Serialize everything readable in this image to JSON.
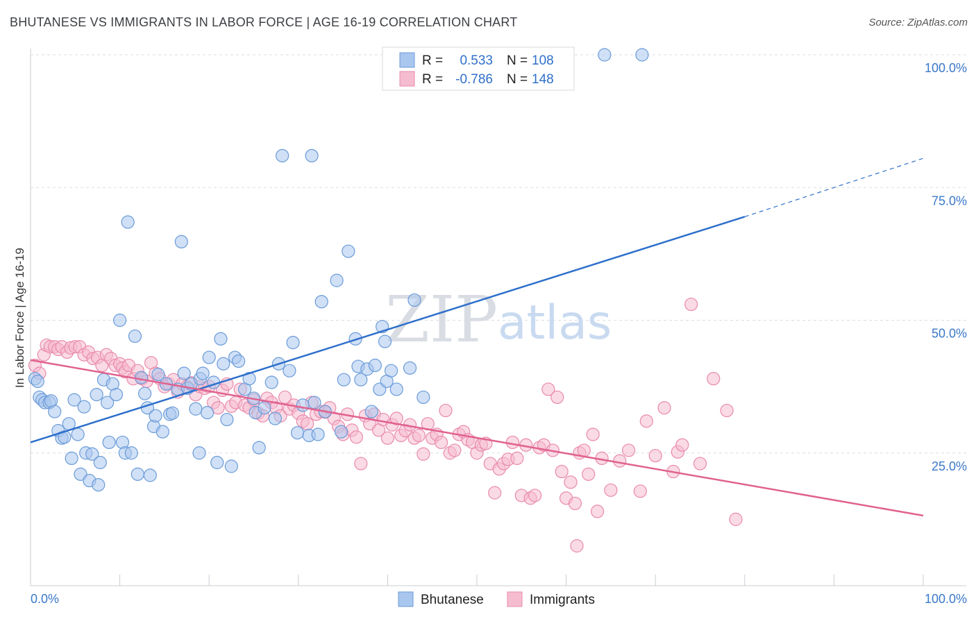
{
  "title": "BHUTANESE VS IMMIGRANTS IN LABOR FORCE | AGE 16-19 CORRELATION CHART",
  "source": "Source: ZipAtlas.com",
  "watermark": {
    "zip": "ZIP",
    "atlas": "atlas"
  },
  "colors": {
    "blue_fill": "#a9c6ee",
    "blue_stroke": "#6a9bd8",
    "blue_line": "#2e6fcb",
    "pink_fill": "#f5bcd0",
    "pink_stroke": "#e98aac",
    "pink_line": "#e0628f",
    "grid": "#d9dde3",
    "tick_text": "#3a78c9"
  },
  "legend": {
    "rows": [
      {
        "r_label": "R =",
        "r_value": "0.533",
        "n_label": "N =",
        "n_value": "108"
      },
      {
        "r_label": "R =",
        "r_value": "-0.786",
        "n_label": "N =",
        "n_value": "148"
      }
    ]
  },
  "bottom_legend": [
    "Bhutanese",
    "Immigrants"
  ],
  "chart_data": {
    "type": "scatter",
    "title": "BHUTANESE VS IMMIGRANTS IN LABOR FORCE | AGE 16-19 CORRELATION CHART",
    "xlabel": "",
    "ylabel": "In Labor Force | Age 16-19",
    "xlim": [
      0,
      100
    ],
    "ylim": [
      0,
      105
    ],
    "x_tick_labels": [
      "0.0%",
      "100.0%"
    ],
    "y_ticks": [
      25,
      50,
      75,
      100
    ],
    "y_tick_labels": [
      "25.0%",
      "50.0%",
      "75.0%",
      "100.0%"
    ],
    "grid": true,
    "legend_position": "top-center",
    "series": [
      {
        "name": "Bhutanese",
        "r": 0.533,
        "n": 108,
        "trend": {
          "x": [
            0,
            80
          ],
          "y": [
            27.0,
            69.5
          ],
          "dashed_to": [
            100,
            80.5
          ]
        },
        "points": [
          [
            0.5,
            39
          ],
          [
            0.8,
            38.5
          ],
          [
            1,
            35.5
          ],
          [
            1.3,
            35
          ],
          [
            1.6,
            34.5
          ],
          [
            2.1,
            34.5
          ],
          [
            2.3,
            34.8
          ],
          [
            2.7,
            32.8
          ],
          [
            3.1,
            29.2
          ],
          [
            3.5,
            27.8
          ],
          [
            3.8,
            28
          ],
          [
            4.3,
            30.5
          ],
          [
            4.6,
            24
          ],
          [
            4.9,
            35
          ],
          [
            5.3,
            28.5
          ],
          [
            5.6,
            21
          ],
          [
            6,
            33.7
          ],
          [
            6.2,
            25
          ],
          [
            6.6,
            19.8
          ],
          [
            6.9,
            24.8
          ],
          [
            7.4,
            36
          ],
          [
            7.6,
            19
          ],
          [
            7.8,
            23.2
          ],
          [
            8.2,
            38.8
          ],
          [
            8.6,
            34.5
          ],
          [
            8.8,
            27
          ],
          [
            9.2,
            38
          ],
          [
            9.6,
            36
          ],
          [
            10,
            50
          ],
          [
            10.3,
            27
          ],
          [
            10.6,
            25
          ],
          [
            10.9,
            68.5
          ],
          [
            11.3,
            25
          ],
          [
            11.7,
            47
          ],
          [
            12,
            21
          ],
          [
            12.4,
            39.2
          ],
          [
            12.8,
            36.2
          ],
          [
            13.1,
            33.5
          ],
          [
            13.4,
            20.8
          ],
          [
            13.8,
            30
          ],
          [
            14,
            32
          ],
          [
            14.3,
            39.8
          ],
          [
            14.8,
            29
          ],
          [
            15.2,
            38
          ],
          [
            15.6,
            32.3
          ],
          [
            15.9,
            32.5
          ],
          [
            16.5,
            37
          ],
          [
            16.9,
            64.8
          ],
          [
            17.2,
            40
          ],
          [
            17.6,
            37.2
          ],
          [
            18,
            38
          ],
          [
            18.5,
            33.3
          ],
          [
            18.9,
            25
          ],
          [
            19,
            39
          ],
          [
            19.3,
            40
          ],
          [
            19.8,
            32.6
          ],
          [
            20,
            43
          ],
          [
            20.5,
            38.3
          ],
          [
            20.9,
            23.2
          ],
          [
            21.3,
            46.5
          ],
          [
            21.6,
            41.8
          ],
          [
            22,
            31.3
          ],
          [
            22.5,
            22.5
          ],
          [
            22.9,
            43
          ],
          [
            23.3,
            42.3
          ],
          [
            24,
            37
          ],
          [
            24.5,
            39
          ],
          [
            25,
            35.3
          ],
          [
            25.2,
            32.6
          ],
          [
            25.6,
            26
          ],
          [
            26.2,
            33.5
          ],
          [
            27,
            38.3
          ],
          [
            27.4,
            31.5
          ],
          [
            27.8,
            41.8
          ],
          [
            28.2,
            81
          ],
          [
            29,
            40.5
          ],
          [
            29.4,
            45.8
          ],
          [
            29.9,
            28.8
          ],
          [
            30.5,
            34
          ],
          [
            31.2,
            28.3
          ],
          [
            31.5,
            81
          ],
          [
            31.8,
            34.5
          ],
          [
            32.2,
            28.5
          ],
          [
            32.6,
            53.5
          ],
          [
            33,
            32.8
          ],
          [
            34.3,
            57.5
          ],
          [
            34.8,
            29
          ],
          [
            35.1,
            38.8
          ],
          [
            35.6,
            63
          ],
          [
            36.4,
            46.5
          ],
          [
            36.7,
            41.3
          ],
          [
            37,
            38.8
          ],
          [
            37.7,
            40.8
          ],
          [
            38.2,
            32.8
          ],
          [
            38.6,
            41.5
          ],
          [
            39.1,
            37
          ],
          [
            39.4,
            48.8
          ],
          [
            39.7,
            46
          ],
          [
            39.9,
            38.5
          ],
          [
            40.4,
            40.5
          ],
          [
            41,
            37
          ],
          [
            42.5,
            41
          ],
          [
            43,
            53.8
          ],
          [
            44,
            35.5
          ],
          [
            64.3,
            100
          ],
          [
            68.5,
            100
          ]
        ]
      },
      {
        "name": "Immigrants",
        "r": -0.786,
        "n": 148,
        "trend": {
          "x": [
            0,
            100
          ],
          "y": [
            42.5,
            13.2
          ]
        },
        "points": [
          [
            0.5,
            41.5
          ],
          [
            1,
            40
          ],
          [
            1.5,
            43.5
          ],
          [
            1.8,
            45.3
          ],
          [
            2.2,
            45
          ],
          [
            2.7,
            45
          ],
          [
            3.1,
            44.5
          ],
          [
            3.5,
            45
          ],
          [
            4.1,
            44
          ],
          [
            4.5,
            44.8
          ],
          [
            5,
            45
          ],
          [
            5.5,
            45
          ],
          [
            6,
            43.5
          ],
          [
            6.5,
            44
          ],
          [
            7,
            42.8
          ],
          [
            7.5,
            43
          ],
          [
            8,
            41.5
          ],
          [
            8.5,
            43.5
          ],
          [
            9,
            42.8
          ],
          [
            9.5,
            41.5
          ],
          [
            10,
            41.8
          ],
          [
            10.3,
            41
          ],
          [
            10.6,
            40.3
          ],
          [
            11,
            41.5
          ],
          [
            11.5,
            39
          ],
          [
            12,
            40.5
          ],
          [
            12.5,
            39
          ],
          [
            13,
            38.5
          ],
          [
            13.5,
            42
          ],
          [
            14,
            40
          ],
          [
            14.5,
            39
          ],
          [
            15,
            37.5
          ],
          [
            15.5,
            38
          ],
          [
            16,
            38.8
          ],
          [
            16.5,
            36.5
          ],
          [
            17,
            38
          ],
          [
            17.5,
            37.5
          ],
          [
            18,
            38.2
          ],
          [
            18.5,
            36
          ],
          [
            19,
            37.5
          ],
          [
            19.5,
            37.2
          ],
          [
            20,
            37.5
          ],
          [
            20.5,
            34.5
          ],
          [
            21,
            33.5
          ],
          [
            21.5,
            36.8
          ],
          [
            22,
            38
          ],
          [
            22.5,
            33.8
          ],
          [
            23,
            34.5
          ],
          [
            23.5,
            37
          ],
          [
            24,
            34
          ],
          [
            24.5,
            33.5
          ],
          [
            25,
            35
          ],
          [
            25.5,
            32.5
          ],
          [
            26,
            32
          ],
          [
            26.5,
            35.3
          ],
          [
            27,
            34.5
          ],
          [
            27.5,
            33.5
          ],
          [
            28,
            32
          ],
          [
            28.5,
            35.5
          ],
          [
            29,
            33.3
          ],
          [
            29.5,
            34
          ],
          [
            30,
            32.5
          ],
          [
            30.5,
            31
          ],
          [
            31,
            30.5
          ],
          [
            31.5,
            34.5
          ],
          [
            32,
            32.3
          ],
          [
            32.5,
            32.8
          ],
          [
            33,
            32.7
          ],
          [
            33.5,
            33.5
          ],
          [
            34,
            31.5
          ],
          [
            34.5,
            30
          ],
          [
            35,
            28.5
          ],
          [
            35.5,
            32.3
          ],
          [
            36,
            29.3
          ],
          [
            36.5,
            28
          ],
          [
            37,
            23
          ],
          [
            37.5,
            32
          ],
          [
            38,
            30.5
          ],
          [
            38.5,
            32.3
          ],
          [
            39,
            29.3
          ],
          [
            39.5,
            31.3
          ],
          [
            40,
            27.8
          ],
          [
            40.5,
            30.3
          ],
          [
            41,
            31.5
          ],
          [
            41.5,
            28.3
          ],
          [
            42,
            29.2
          ],
          [
            42.5,
            30.3
          ],
          [
            43,
            27.8
          ],
          [
            43.5,
            28.3
          ],
          [
            44,
            24.8
          ],
          [
            44.5,
            30.5
          ],
          [
            45,
            27.8
          ],
          [
            45.5,
            28.5
          ],
          [
            46,
            27
          ],
          [
            46.5,
            33
          ],
          [
            47,
            25
          ],
          [
            47.5,
            25.5
          ],
          [
            48,
            28.5
          ],
          [
            48.5,
            29
          ],
          [
            49,
            27.5
          ],
          [
            49.5,
            27
          ],
          [
            50,
            25
          ],
          [
            50.5,
            26.5
          ],
          [
            51,
            26.8
          ],
          [
            51.5,
            23
          ],
          [
            52,
            17.5
          ],
          [
            52.5,
            22
          ],
          [
            53,
            23
          ],
          [
            53.5,
            23.8
          ],
          [
            54,
            27
          ],
          [
            54.5,
            24
          ],
          [
            55,
            17
          ],
          [
            55.5,
            26.5
          ],
          [
            56,
            16.5
          ],
          [
            56.5,
            17
          ],
          [
            57,
            26
          ],
          [
            57.5,
            26.5
          ],
          [
            58,
            37
          ],
          [
            58.5,
            25.5
          ],
          [
            59,
            35.5
          ],
          [
            59.5,
            21.5
          ],
          [
            60,
            16.5
          ],
          [
            60.5,
            19.5
          ],
          [
            61,
            15.5
          ],
          [
            61.5,
            25
          ],
          [
            62,
            25.5
          ],
          [
            62.5,
            21
          ],
          [
            63,
            28.5
          ],
          [
            63.5,
            14
          ],
          [
            64,
            24
          ],
          [
            65,
            18
          ],
          [
            66,
            23.5
          ],
          [
            67,
            25.5
          ],
          [
            68.3,
            17.8
          ],
          [
            69,
            31
          ],
          [
            70,
            24.5
          ],
          [
            71,
            33.5
          ],
          [
            72,
            21.5
          ],
          [
            72.5,
            25.2
          ],
          [
            73,
            26.5
          ],
          [
            74,
            53
          ],
          [
            75,
            23
          ],
          [
            76.5,
            39
          ],
          [
            78,
            33
          ],
          [
            79,
            12.5
          ],
          [
            61.2,
            7.5
          ]
        ]
      }
    ]
  }
}
